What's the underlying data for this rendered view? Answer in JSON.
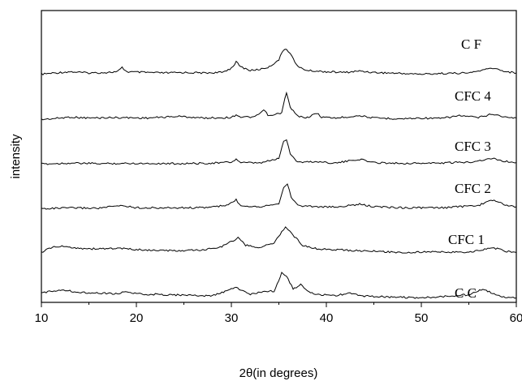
{
  "chart_data": {
    "type": "line",
    "title": "",
    "xlabel": "2θ(in degrees)",
    "ylabel": "intensity",
    "xlim": [
      10,
      60
    ],
    "x_ticks": [
      10,
      20,
      30,
      40,
      50,
      60
    ],
    "x_tick_labels": [
      "10",
      "20",
      "30",
      "40",
      "50",
      "60"
    ],
    "y_ticks_shown": false,
    "grid": false,
    "legend": "labels placed beside each trace",
    "series": [
      {
        "name": "C F",
        "offset": 5,
        "x": [
          10,
          12,
          13,
          15,
          17,
          18,
          18.5,
          19,
          21,
          23,
          25,
          27,
          29,
          30,
          30.5,
          31,
          32,
          33,
          34,
          35,
          35.5,
          35.8,
          36.2,
          37,
          38,
          40,
          42,
          43.5,
          45,
          48,
          50,
          52,
          55,
          57.5,
          59,
          60
        ],
        "y": [
          0.05,
          0.12,
          0.15,
          0.1,
          0.12,
          0.15,
          0.32,
          0.15,
          0.12,
          0.1,
          0.12,
          0.1,
          0.12,
          0.3,
          0.55,
          0.35,
          0.2,
          0.25,
          0.35,
          0.65,
          1.05,
          1.1,
          0.9,
          0.35,
          0.2,
          0.15,
          0.12,
          0.18,
          0.12,
          0.08,
          0.05,
          0.08,
          0.1,
          0.3,
          0.15,
          0.1
        ]
      },
      {
        "name": "CFC 4",
        "offset": 4,
        "x": [
          10,
          12,
          13,
          15,
          18,
          21,
          24.5,
          27,
          30,
          30.5,
          31,
          32.5,
          33.4,
          34,
          35.3,
          35.8,
          36.2,
          37,
          38,
          39,
          39.5,
          41,
          43.5,
          45,
          48,
          50,
          52,
          54,
          56,
          57.5,
          59,
          60
        ],
        "y": [
          0.02,
          0.08,
          0.12,
          0.08,
          0.1,
          0.08,
          0.15,
          0.08,
          0.1,
          0.22,
          0.12,
          0.12,
          0.4,
          0.15,
          0.3,
          1.15,
          0.5,
          0.15,
          0.1,
          0.28,
          0.12,
          0.08,
          0.18,
          0.08,
          0.05,
          0.08,
          0.06,
          0.18,
          0.1,
          0.25,
          0.1,
          0.08
        ]
      },
      {
        "name": "CFC 3",
        "offset": 3,
        "x": [
          10,
          13,
          16,
          20,
          25,
          28,
          30,
          30.5,
          31,
          33,
          35,
          35.5,
          35.8,
          36.2,
          37,
          39,
          41,
          43.5,
          45,
          48,
          52,
          55,
          57.5,
          59,
          60
        ],
        "y": [
          0.02,
          0.06,
          0.04,
          0.05,
          0.04,
          0.06,
          0.1,
          0.22,
          0.08,
          0.06,
          0.25,
          0.95,
          1.05,
          0.45,
          0.1,
          0.12,
          0.06,
          0.22,
          0.08,
          0.05,
          0.06,
          0.1,
          0.25,
          0.12,
          0.08
        ]
      },
      {
        "name": "CFC 2",
        "offset": 2,
        "x": [
          10,
          13,
          16,
          18.5,
          20,
          23,
          27,
          29.5,
          30.5,
          31,
          33,
          35,
          35.5,
          35.9,
          36.3,
          37,
          39,
          41,
          43.5,
          45,
          48,
          52,
          54,
          56,
          57.5,
          59,
          60
        ],
        "y": [
          0.02,
          0.05,
          0.04,
          0.15,
          0.06,
          0.05,
          0.06,
          0.15,
          0.38,
          0.15,
          0.1,
          0.25,
          0.85,
          1.05,
          0.5,
          0.15,
          0.1,
          0.08,
          0.2,
          0.1,
          0.06,
          0.05,
          0.1,
          0.15,
          0.38,
          0.15,
          0.1
        ]
      },
      {
        "name": "CFC 1",
        "offset": 1,
        "x": [
          10,
          11,
          12,
          15,
          18,
          21,
          24,
          27,
          29,
          30.7,
          31.5,
          33,
          34.5,
          35.3,
          35.7,
          36.3,
          37.5,
          39,
          42,
          45,
          48,
          52,
          55,
          57.5,
          59,
          60
        ],
        "y": [
          0.05,
          0.25,
          0.3,
          0.2,
          0.22,
          0.15,
          0.12,
          0.15,
          0.3,
          0.65,
          0.35,
          0.25,
          0.45,
          0.9,
          1.1,
          0.85,
          0.35,
          0.2,
          0.15,
          0.1,
          0.05,
          0.08,
          0.05,
          0.25,
          0.1,
          0.05
        ]
      },
      {
        "name": "C C",
        "offset": 0,
        "x": [
          10,
          11,
          12,
          14,
          16,
          18,
          18.7,
          20,
          23,
          26,
          28,
          29.5,
          30.5,
          31,
          32,
          33,
          34.5,
          35.3,
          35.8,
          36.5,
          37.3,
          38,
          39,
          41,
          42.5,
          44,
          47,
          50,
          53,
          55,
          56.3,
          57,
          58,
          59,
          60
        ],
        "y": [
          0.2,
          0.3,
          0.35,
          0.25,
          0.22,
          0.18,
          0.28,
          0.18,
          0.15,
          0.12,
          0.1,
          0.3,
          0.45,
          0.35,
          0.15,
          0.25,
          0.3,
          1.05,
          0.9,
          0.4,
          0.55,
          0.3,
          0.15,
          0.12,
          0.2,
          0.1,
          0.05,
          0.02,
          0.1,
          0.15,
          0.35,
          0.3,
          0.1,
          0.05,
          0.02
        ]
      }
    ]
  }
}
